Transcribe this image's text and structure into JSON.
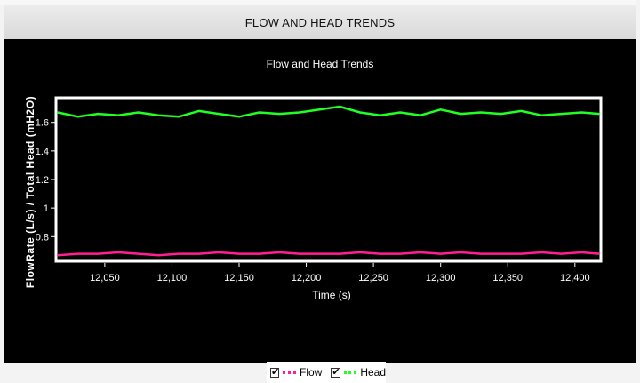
{
  "header": {
    "title": "FLOW AND HEAD TRENDS"
  },
  "chart_data": {
    "type": "line",
    "title": "Flow and Head Trends",
    "xlabel": "Time (s)",
    "ylabel": "FlowRate (L/s) / Total Head (mH2O)",
    "xlim": [
      12015,
      12418
    ],
    "ylim": [
      0.64,
      1.76
    ],
    "xticks": [
      12050,
      12100,
      12150,
      12200,
      12250,
      12300,
      12350,
      12400
    ],
    "xtick_labels": [
      "12,050",
      "12,100",
      "12,150",
      "12,200",
      "12,250",
      "12,300",
      "12,350",
      "12,400"
    ],
    "yticks": [
      0.8,
      1.0,
      1.2,
      1.4,
      1.6
    ],
    "ytick_labels": [
      "0.8",
      "1",
      "1.2",
      "1.4",
      "1.6"
    ],
    "grid": false,
    "legend_position": "bottom-center",
    "series": [
      {
        "name": "Flow",
        "color": "#ff1f8f",
        "x": [
          12015,
          12030,
          12045,
          12060,
          12075,
          12090,
          12105,
          12120,
          12135,
          12150,
          12165,
          12180,
          12195,
          12210,
          12225,
          12240,
          12255,
          12270,
          12285,
          12300,
          12315,
          12330,
          12345,
          12360,
          12375,
          12390,
          12405,
          12418
        ],
        "values": [
          0.67,
          0.68,
          0.68,
          0.69,
          0.68,
          0.67,
          0.68,
          0.68,
          0.69,
          0.68,
          0.68,
          0.69,
          0.68,
          0.68,
          0.68,
          0.69,
          0.68,
          0.68,
          0.69,
          0.68,
          0.69,
          0.68,
          0.68,
          0.68,
          0.69,
          0.68,
          0.69,
          0.68
        ]
      },
      {
        "name": "Head",
        "color": "#22ff22",
        "x": [
          12015,
          12030,
          12045,
          12060,
          12075,
          12090,
          12105,
          12120,
          12135,
          12150,
          12165,
          12180,
          12195,
          12210,
          12225,
          12240,
          12255,
          12270,
          12285,
          12300,
          12315,
          12330,
          12345,
          12360,
          12375,
          12390,
          12405,
          12418
        ],
        "values": [
          1.67,
          1.64,
          1.66,
          1.65,
          1.67,
          1.65,
          1.64,
          1.68,
          1.66,
          1.64,
          1.67,
          1.66,
          1.67,
          1.69,
          1.71,
          1.67,
          1.65,
          1.67,
          1.65,
          1.69,
          1.66,
          1.67,
          1.66,
          1.68,
          1.65,
          1.66,
          1.67,
          1.66
        ]
      }
    ]
  }
}
